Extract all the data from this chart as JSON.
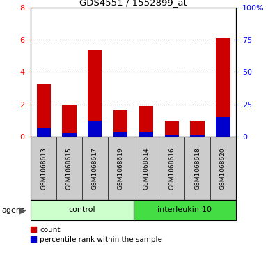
{
  "title": "GDS4551 / 1552899_at",
  "samples": [
    "GSM1068613",
    "GSM1068615",
    "GSM1068617",
    "GSM1068619",
    "GSM1068614",
    "GSM1068616",
    "GSM1068618",
    "GSM1068620"
  ],
  "count_values": [
    3.3,
    2.0,
    5.35,
    1.65,
    1.9,
    1.0,
    1.0,
    6.1
  ],
  "percentile_values": [
    6.25,
    2.5,
    12.5,
    3.125,
    3.75,
    1.25,
    1.25,
    15.0
  ],
  "groups": [
    {
      "label": "control",
      "start": 0,
      "end": 4
    },
    {
      "label": "interleukin-10",
      "start": 4,
      "end": 8
    }
  ],
  "group_light_color": "#ccffcc",
  "group_dark_color": "#44dd44",
  "bar_color": "#cc0000",
  "percentile_color": "#0000cc",
  "ylim_left": [
    0,
    8
  ],
  "ylim_right": [
    0,
    100
  ],
  "yticks_left": [
    0,
    2,
    4,
    6,
    8
  ],
  "yticks_right": [
    0,
    25,
    50,
    75,
    100
  ],
  "ytick_labels_right": [
    "0",
    "25",
    "50",
    "75",
    "100%"
  ],
  "bar_width": 0.55,
  "tick_area_bg": "#cccccc",
  "agent_label": "agent",
  "legend_count": "count",
  "legend_percentile": "percentile rank within the sample"
}
